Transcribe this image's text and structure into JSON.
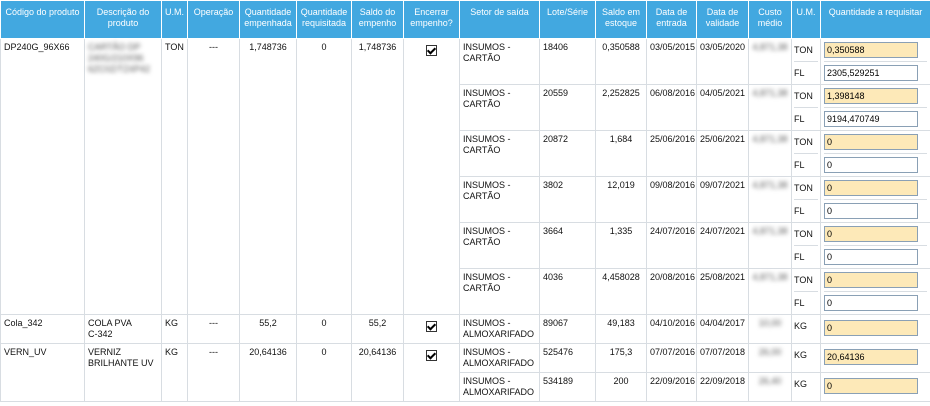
{
  "headers": [
    "Código do produto",
    "Descrição do produto",
    "U.M.",
    "Operação",
    "Quantidade empenhada",
    "Quantidade requisitada",
    "Saldo do empenho",
    "Encerrar empenho?",
    "Setor de saída",
    "Lote/Série",
    "Saldo em estoque",
    "Data de entrada",
    "Data de validade",
    "Custo médio",
    "U.M.",
    "Quantidade a requisitar"
  ],
  "products": [
    {
      "code": "DP240G_96X66",
      "desc_lines": [
        "CARTÃO DP",
        "240G/210X96",
        "6ZC0Z/TZ4",
        "P42"
      ],
      "um": "TON",
      "op": "---",
      "qtd_emp": "1,748736",
      "qtd_req": "0",
      "saldo_emp": "1,748736",
      "encerrar": true,
      "lots": [
        {
          "setor": "INSUMOS - CARTÃO",
          "lote": "18406",
          "saldo": "0,350588",
          "entrada": "03/05/2015",
          "validade": "03/05/2020",
          "custo": "4,871,38",
          "ums": [
            "TON",
            "FL"
          ],
          "qtys": [
            "0,350588",
            "2305,529251"
          ]
        },
        {
          "setor": "INSUMOS - CARTÃO",
          "lote": "20559",
          "saldo": "2,252825",
          "entrada": "06/08/2016",
          "validade": "04/05/2021",
          "custo": "4,871,38",
          "ums": [
            "TON",
            "FL"
          ],
          "qtys": [
            "1,398148",
            "9194,470749"
          ]
        },
        {
          "setor": "INSUMOS - CARTÃO",
          "lote": "20872",
          "saldo": "1,684",
          "entrada": "25/06/2016",
          "validade": "25/06/2021",
          "custo": "4,871,38",
          "ums": [
            "TON",
            "FL"
          ],
          "qtys": [
            "0",
            "0"
          ]
        },
        {
          "setor": "INSUMOS - CARTÃO",
          "lote": "3802",
          "saldo": "12,019",
          "entrada": "09/08/2016",
          "validade": "09/07/2021",
          "custo": "4,871,38",
          "ums": [
            "TON",
            "FL"
          ],
          "qtys": [
            "0",
            "0"
          ]
        },
        {
          "setor": "INSUMOS - CARTÃO",
          "lote": "3664",
          "saldo": "1,335",
          "entrada": "24/07/2016",
          "validade": "24/07/2021",
          "custo": "4,871,38",
          "ums": [
            "TON",
            "FL"
          ],
          "qtys": [
            "0",
            "0"
          ]
        },
        {
          "setor": "INSUMOS - CARTÃO",
          "lote": "4036",
          "saldo": "4,458028",
          "entrada": "20/08/2016",
          "validade": "25/08/2021",
          "custo": "4,871,38",
          "ums": [
            "TON",
            "FL"
          ],
          "qtys": [
            "0",
            "0"
          ]
        }
      ]
    },
    {
      "code": "Cola_342",
      "desc_lines": [
        "COLA PVA",
        "C-342"
      ],
      "um": "KG",
      "op": "---",
      "qtd_emp": "55,2",
      "qtd_req": "0",
      "saldo_emp": "55,2",
      "encerrar": true,
      "lots": [
        {
          "setor": "INSUMOS - ALMOXARIFADO",
          "lote": "89067",
          "saldo": "49,183",
          "entrada": "04/10/2016",
          "validade": "04/04/2017",
          "custo": "10,00",
          "ums": [
            "KG"
          ],
          "qtys": [
            "0"
          ]
        }
      ]
    },
    {
      "code": "VERN_UV",
      "desc_lines": [
        "VERNIZ",
        "BRILHANTE UV"
      ],
      "um": "KG",
      "op": "---",
      "qtd_emp": "20,64136",
      "qtd_req": "0",
      "saldo_emp": "20,64136",
      "encerrar": true,
      "lots": [
        {
          "setor": "INSUMOS - ALMOXARIFADO",
          "lote": "525476",
          "saldo": "175,3",
          "entrada": "07/07/2016",
          "validade": "07/07/2018",
          "custo": "26,00",
          "ums": [
            "KG"
          ],
          "qtys": [
            "20,64136"
          ]
        },
        {
          "setor": "INSUMOS - ALMOXARIFADO",
          "lote": "534189",
          "saldo": "200",
          "entrada": "22/09/2016",
          "validade": "22/09/2018",
          "custo": "26,40",
          "ums": [
            "KG"
          ],
          "qtys": [
            "0"
          ]
        }
      ]
    }
  ],
  "colors": {
    "header_bg": "#42a8e0",
    "input_highlight": "#fde9b8",
    "border": "#d8dde2"
  }
}
